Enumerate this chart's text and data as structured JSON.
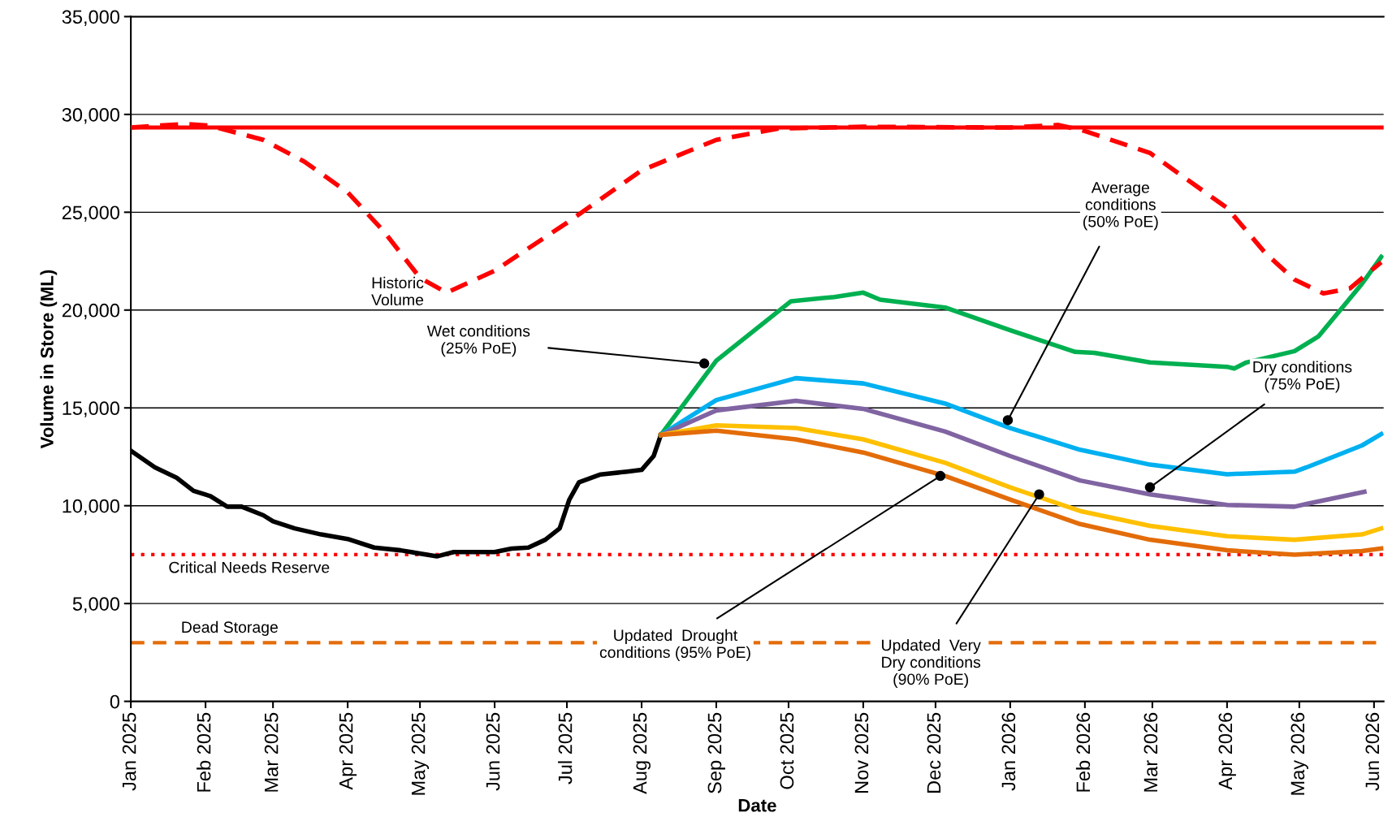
{
  "chart_data": {
    "type": "line",
    "xlabel": "Date",
    "ylabel": "Volume in Store (ML)",
    "xlim": [
      "2025-01-01",
      "2026-06-05"
    ],
    "xticks": [
      {
        "value": "2025-01-01",
        "label": "Jan 2025"
      },
      {
        "value": "2025-02-01",
        "label": "Feb 2025"
      },
      {
        "value": "2025-03-01",
        "label": "Mar 2025"
      },
      {
        "value": "2025-04-01",
        "label": "Apr 2025"
      },
      {
        "value": "2025-05-01",
        "label": "May 2025"
      },
      {
        "value": "2025-06-01",
        "label": "Jun 2025"
      },
      {
        "value": "2025-07-01",
        "label": "Jul 2025"
      },
      {
        "value": "2025-08-01",
        "label": "Aug 2025"
      },
      {
        "value": "2025-09-01",
        "label": "Sep 2025"
      },
      {
        "value": "2025-10-01",
        "label": "Oct 2025"
      },
      {
        "value": "2025-11-01",
        "label": "Nov 2025"
      },
      {
        "value": "2025-12-01",
        "label": "Dec 2025"
      },
      {
        "value": "2026-01-01",
        "label": "Jan 2026"
      },
      {
        "value": "2026-02-01",
        "label": "Feb 2026"
      },
      {
        "value": "2026-03-01",
        "label": "Mar 2026"
      },
      {
        "value": "2026-04-01",
        "label": "Apr 2026"
      },
      {
        "value": "2026-05-01",
        "label": "May 2026"
      },
      {
        "value": "2026-06-01",
        "label": "Jun 2026"
      }
    ],
    "ylim": [
      0,
      35000
    ],
    "yticks": [
      {
        "value": 0,
        "label": "0"
      },
      {
        "value": 5000,
        "label": "5,000"
      },
      {
        "value": 10000,
        "label": "10,000"
      },
      {
        "value": 15000,
        "label": "15,000"
      },
      {
        "value": 20000,
        "label": "20,000"
      },
      {
        "value": 25000,
        "label": "25,000"
      },
      {
        "value": 30000,
        "label": "30,000"
      },
      {
        "value": 35000,
        "label": "35,000"
      }
    ],
    "grid": "y",
    "legend": false,
    "marker": "none",
    "series": [
      {
        "color": "#000000",
        "x": [
          "2025-01-01",
          "2025-01-11",
          "2025-01-20",
          "2025-01-27",
          "2025-02-03",
          "2025-02-10",
          "2025-02-16",
          "2025-02-25",
          "2025-03-01",
          "2025-03-10",
          "2025-03-21",
          "2025-04-01",
          "2025-04-12",
          "2025-04-23",
          "2025-05-08",
          "2025-05-15",
          "2025-06-01",
          "2025-06-08",
          "2025-06-15",
          "2025-06-22",
          "2025-06-28",
          "2025-07-02",
          "2025-07-06",
          "2025-07-15",
          "2025-07-26",
          "2025-08-01",
          "2025-08-06",
          "2025-08-09"
        ],
        "values": [
          12810,
          11960,
          11430,
          10760,
          10490,
          9950,
          9950,
          9510,
          9200,
          8840,
          8530,
          8300,
          7860,
          7720,
          7410,
          7630,
          7630,
          7810,
          7860,
          8260,
          8840,
          10310,
          11200,
          11600,
          11740,
          11830,
          12540,
          13620
        ],
        "line_style": "solid"
      },
      {
        "color": "#00b050",
        "x": [
          "2025-08-09",
          "2025-09-01",
          "2025-10-02",
          "2025-10-20",
          "2025-11-01",
          "2025-11-08",
          "2025-12-05",
          "2026-01-01",
          "2026-01-28",
          "2026-02-05",
          "2026-02-28",
          "2026-04-01",
          "2026-04-04",
          "2026-04-09",
          "2026-04-29",
          "2026-05-09",
          "2026-05-27",
          "2026-06-04"
        ],
        "values": [
          13620,
          17410,
          20450,
          20670,
          20890,
          20530,
          20130,
          18970,
          17860,
          17810,
          17320,
          17100,
          17010,
          17320,
          17900,
          18660,
          21340,
          22720
        ],
        "line_style": "solid"
      },
      {
        "color": "#00b0f0",
        "x": [
          "2025-08-09",
          "2025-09-01",
          "2025-10-04",
          "2025-11-01",
          "2025-12-05",
          "2026-01-01",
          "2026-01-30",
          "2026-02-28",
          "2026-04-01",
          "2026-04-29",
          "2026-05-04",
          "2026-05-27",
          "2026-06-04"
        ],
        "values": [
          13620,
          15400,
          16520,
          16250,
          15220,
          13970,
          12860,
          12100,
          11610,
          11740,
          11960,
          13080,
          13660
        ],
        "line_style": "solid"
      },
      {
        "color": "#8064a2",
        "x": [
          "2025-08-09",
          "2025-09-01",
          "2025-10-04",
          "2025-11-01",
          "2025-12-05",
          "2026-01-01",
          "2026-01-30",
          "2026-02-28",
          "2026-04-01",
          "2026-04-29",
          "2026-05-04",
          "2026-05-28"
        ],
        "values": [
          13620,
          14870,
          15360,
          14950,
          13790,
          12540,
          11290,
          10580,
          10040,
          9950,
          10090,
          10710
        ],
        "line_style": "solid"
      },
      {
        "color": "#ffc000",
        "x": [
          "2025-08-09",
          "2025-09-01",
          "2025-10-04",
          "2025-11-01",
          "2025-12-05",
          "2026-01-01",
          "2026-01-30",
          "2026-02-28",
          "2026-04-01",
          "2026-04-29",
          "2026-05-27",
          "2026-06-04"
        ],
        "values": [
          13620,
          14110,
          13970,
          13390,
          12190,
          10940,
          9730,
          8970,
          8440,
          8260,
          8530,
          8840
        ],
        "line_style": "solid"
      },
      {
        "color": "#e36c09",
        "x": [
          "2025-08-09",
          "2025-09-01",
          "2025-10-04",
          "2025-11-01",
          "2025-12-05",
          "2026-01-01",
          "2026-01-30",
          "2026-02-28",
          "2026-04-01",
          "2026-04-29",
          "2026-05-27",
          "2026-06-04"
        ],
        "values": [
          13620,
          13840,
          13390,
          12720,
          11520,
          10310,
          9060,
          8260,
          7720,
          7500,
          7680,
          7810
        ],
        "line_style": "solid"
      },
      {
        "name": "Historic\nVolume",
        "color": "#ff0000",
        "x": [
          "2025-01-01",
          "2025-01-23",
          "2025-02-03",
          "2025-02-25",
          "2025-03-14",
          "2025-04-01",
          "2025-04-16",
          "2025-05-01",
          "2025-05-12",
          "2025-06-01",
          "2025-07-01",
          "2025-08-01",
          "2025-09-01",
          "2025-09-27",
          "2025-11-01",
          "2026-01-01",
          "2026-01-21",
          "2026-02-01",
          "2026-02-28",
          "2026-04-01",
          "2026-04-17",
          "2026-04-29",
          "2026-05-11",
          "2026-05-22",
          "2026-06-04"
        ],
        "values": [
          29330,
          29510,
          29420,
          28700,
          27590,
          26020,
          24020,
          21650,
          20890,
          22010,
          24460,
          27140,
          28700,
          29280,
          29370,
          29330,
          29460,
          29150,
          28030,
          25220,
          22900,
          21560,
          20850,
          21110,
          22450
        ],
        "line_style": "dashed"
      }
    ],
    "ref_lines": [
      {
        "axis": "y",
        "value": 29330,
        "color": "#ff0000",
        "line_style": "solid"
      },
      {
        "axis": "y",
        "value": 7500,
        "label": "Critical Needs Reserve",
        "color": "#ff0000",
        "line_style": "dotted"
      },
      {
        "axis": "y",
        "value": 3000,
        "label": "Dead Storage",
        "color": "#e36c09",
        "line_style": "dashed"
      }
    ],
    "annotations": [
      {
        "text": "Wet conditions\n(25% PoE)",
        "x": "2025-08-27",
        "y": 17270
      },
      {
        "text": "Average\nconditions\n(50% PoE)",
        "x": "2025-12-31",
        "y": 14370
      },
      {
        "text": "Dry conditions\n(75% PoE)",
        "x": "2026-02-28",
        "y": 10940
      },
      {
        "text": "Updated  Drought\nconditions (95% PoE)",
        "x": "2025-12-03",
        "y": 11520
      },
      {
        "text": "Updated  Very\nDry conditions\n(90% PoE)",
        "x": "2026-01-13",
        "y": 10580
      }
    ]
  }
}
